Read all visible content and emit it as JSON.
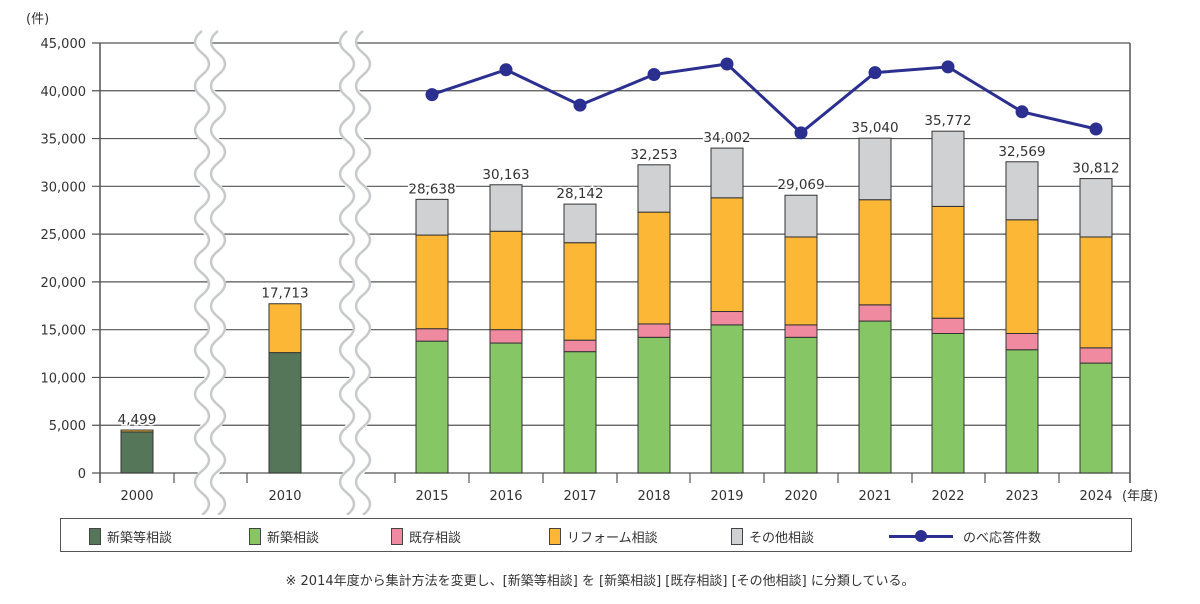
{
  "chart_data": {
    "type": "bar",
    "subtype": "stacked-bar-with-line",
    "title": "",
    "ylabel": "(件)",
    "xlabel": "(年度)",
    "ylim": [
      0,
      45000
    ],
    "yticks": [
      0,
      5000,
      10000,
      15000,
      20000,
      25000,
      30000,
      35000,
      40000,
      45000
    ],
    "ytick_labels": [
      "0",
      "5,000",
      "10,000",
      "15,000",
      "20,000",
      "25,000",
      "30,000",
      "35,000",
      "40,000",
      "45,000"
    ],
    "grid": true,
    "axis_breaks_after": [
      "2000",
      "2010"
    ],
    "categories": [
      "2000",
      "2010",
      "2015",
      "2016",
      "2017",
      "2018",
      "2019",
      "2020",
      "2021",
      "2022",
      "2023",
      "2024"
    ],
    "series": [
      {
        "name": "新築等相談",
        "kind": "bar",
        "color": "#56765a",
        "values": [
          4300,
          12600,
          null,
          null,
          null,
          null,
          null,
          null,
          null,
          null,
          null,
          null
        ]
      },
      {
        "name": "新築相談",
        "kind": "bar",
        "color": "#86c665",
        "values": [
          null,
          null,
          13800,
          13600,
          12700,
          14200,
          15500,
          14200,
          15900,
          14600,
          12900,
          11500
        ]
      },
      {
        "name": "既存相談",
        "kind": "bar",
        "color": "#f08aa0",
        "values": [
          null,
          null,
          1300,
          1400,
          1200,
          1400,
          1400,
          1300,
          1700,
          1600,
          1700,
          1600
        ]
      },
      {
        "name": "リフォーム相談",
        "kind": "bar",
        "color": "#fbb735",
        "values": [
          199,
          5113,
          9800,
          10300,
          10200,
          11700,
          11900,
          9200,
          11000,
          11700,
          11900,
          11600
        ]
      },
      {
        "name": "その他相談",
        "kind": "bar",
        "color": "#d0d1d3",
        "values": [
          null,
          null,
          3738,
          4863,
          4042,
          4953,
          5202,
          4369,
          6440,
          7872,
          6069,
          6112
        ]
      },
      {
        "name": "のべ応答件数",
        "kind": "line",
        "color": "#2b2f8f",
        "values": [
          null,
          null,
          39600,
          42200,
          38500,
          41700,
          42800,
          35600,
          41900,
          42500,
          37800,
          36000
        ]
      }
    ],
    "totals": [
      4499,
      17713,
      28638,
      30163,
      28142,
      32253,
      34002,
      29069,
      35040,
      35772,
      32569,
      30812
    ],
    "total_labels": [
      "4,499",
      "17,713",
      "28,638",
      "30,163",
      "28,142",
      "32,253",
      "34,002",
      "29,069",
      "35,040",
      "35,772",
      "32,569",
      "30,812"
    ],
    "legend_position": "bottom",
    "legend": [
      "新築等相談",
      "新築相談",
      "既存相談",
      "リフォーム相談",
      "その他相談",
      "のべ応答件数"
    ]
  },
  "note": "※ 2014年度から集計方法を変更し、[新築等相談] を [新築相談] [既存相談] [その他相談] に分類している。"
}
